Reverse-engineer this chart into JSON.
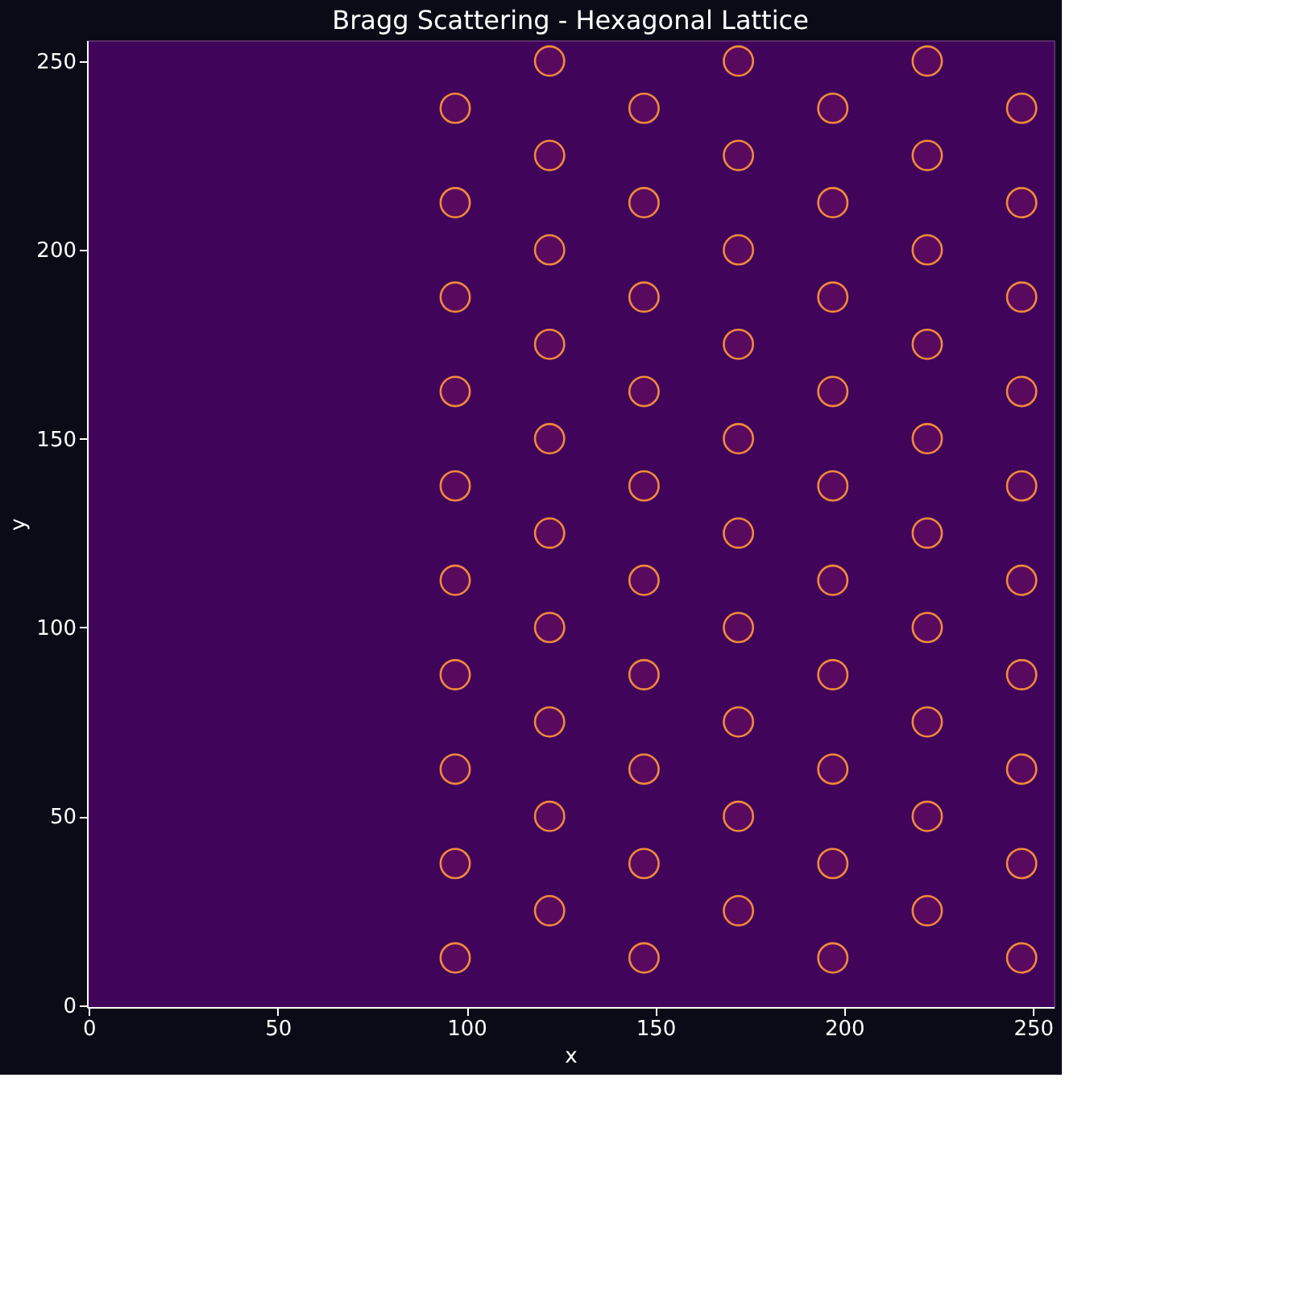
{
  "chart_data": {
    "type": "scatter",
    "title": "Bragg Scattering - Hexagonal Lattice",
    "xlabel": "x",
    "ylabel": "y",
    "xlim": [
      -0.5,
      255.5
    ],
    "ylim": [
      -0.5,
      255.5
    ],
    "xticks": [
      0,
      50,
      100,
      150,
      200,
      250
    ],
    "yticks": [
      0,
      50,
      100,
      150,
      200,
      250
    ],
    "grid": false,
    "marker": "circle",
    "series": [
      {
        "color": "#f08a3c",
        "x": [
          97,
          97,
          97,
          97,
          97,
          97,
          97,
          97,
          97,
          97,
          122,
          122,
          122,
          122,
          122,
          122,
          122,
          122,
          122,
          122,
          147,
          147,
          147,
          147,
          147,
          147,
          147,
          147,
          147,
          147,
          172,
          172,
          172,
          172,
          172,
          172,
          172,
          172,
          172,
          172,
          197,
          197,
          197,
          197,
          197,
          197,
          197,
          197,
          197,
          197,
          222,
          222,
          222,
          222,
          222,
          222,
          222,
          222,
          222,
          222,
          247,
          247,
          247,
          247,
          247,
          247,
          247,
          247,
          247,
          247
        ],
        "values": [
          12.5,
          37.5,
          62.5,
          87.5,
          112.5,
          137.5,
          162.5,
          187.5,
          212.5,
          237.5,
          25,
          50,
          75,
          100,
          125,
          150,
          175,
          200,
          225,
          250,
          12.5,
          37.5,
          62.5,
          87.5,
          112.5,
          137.5,
          162.5,
          187.5,
          212.5,
          237.5,
          25,
          50,
          75,
          100,
          125,
          150,
          175,
          200,
          225,
          250,
          12.5,
          37.5,
          62.5,
          87.5,
          112.5,
          137.5,
          162.5,
          187.5,
          212.5,
          237.5,
          25,
          50,
          75,
          100,
          125,
          150,
          175,
          200,
          225,
          250,
          12.5,
          37.5,
          62.5,
          87.5,
          112.5,
          137.5,
          162.5,
          187.5,
          212.5,
          237.5
        ]
      }
    ]
  }
}
